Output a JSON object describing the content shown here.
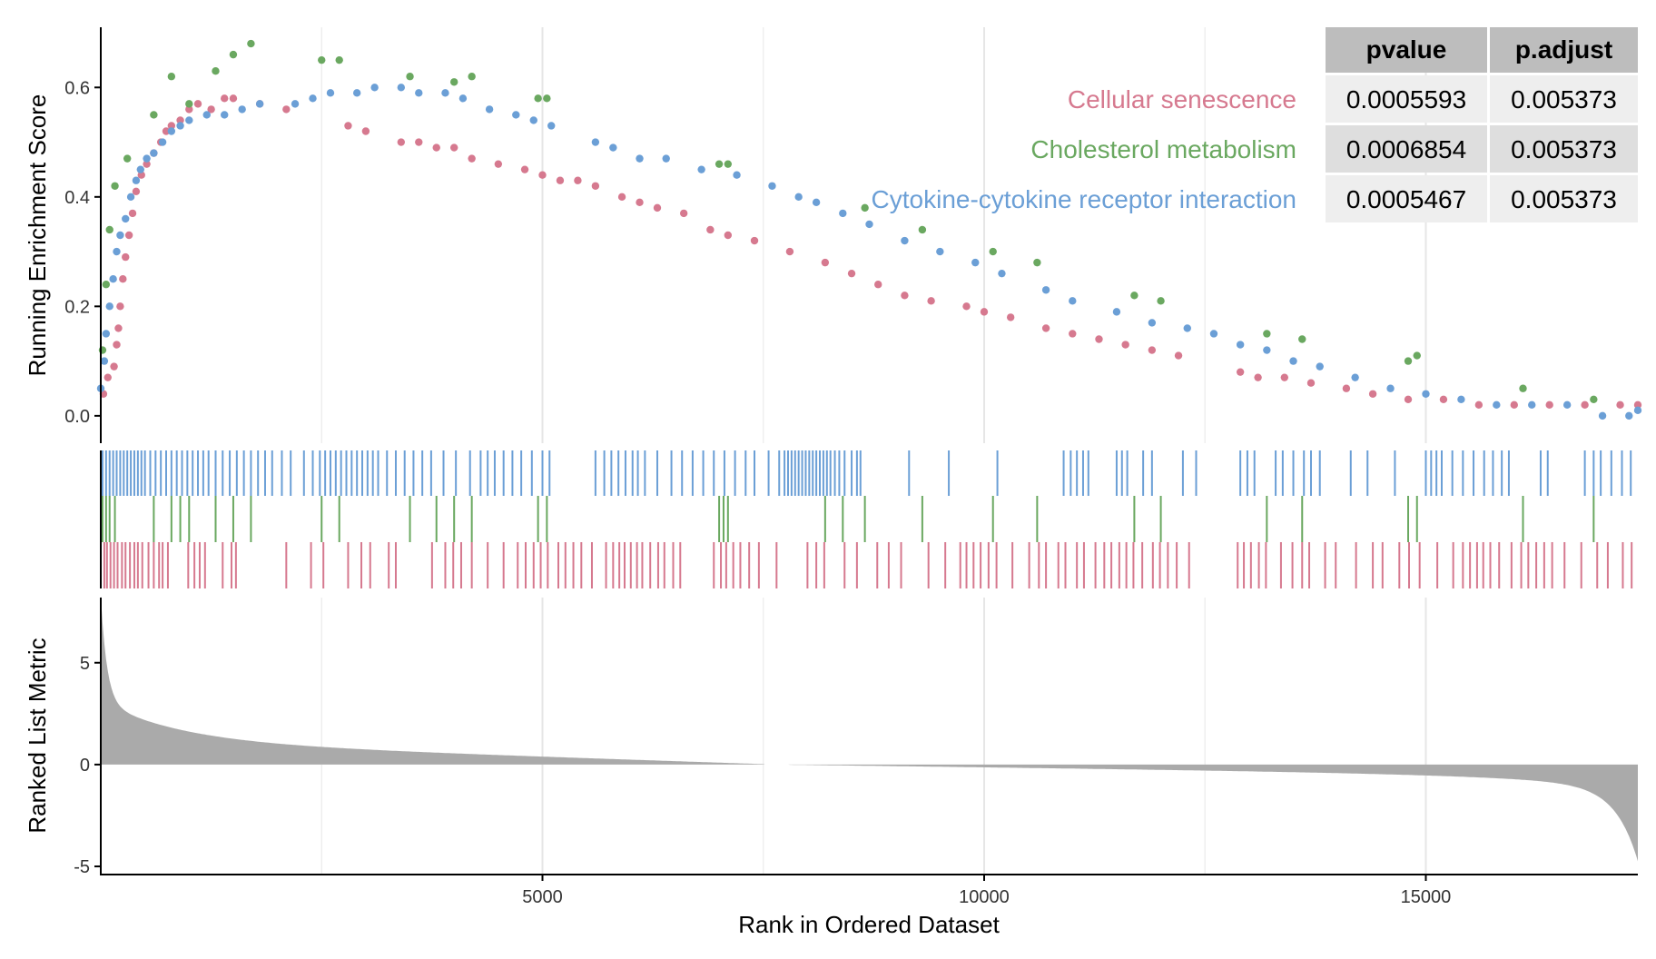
{
  "chart_data": {
    "type": "scatter",
    "xlabel": "Rank in Ordered Dataset",
    "x_ticks": [
      5000,
      10000,
      15000
    ],
    "xlim": [
      0,
      17400
    ],
    "panels": {
      "enrichment": {
        "ylabel": "Running Enrichment Score",
        "ylim": [
          -0.05,
          0.71
        ],
        "y_ticks": [
          "0.0",
          "0.2",
          "0.4",
          "0.6"
        ]
      },
      "metric": {
        "ylabel": "Ranked List Metric",
        "ylim": [
          -5.4,
          8.2
        ],
        "y_ticks": [
          "-5",
          "0",
          "5"
        ]
      }
    },
    "series": [
      {
        "name": "Cellular senescence",
        "color": "#d6798f",
        "points": [
          [
            30,
            0.04
          ],
          [
            80,
            0.07
          ],
          [
            150,
            0.09
          ],
          [
            180,
            0.13
          ],
          [
            200,
            0.16
          ],
          [
            220,
            0.2
          ],
          [
            250,
            0.25
          ],
          [
            280,
            0.29
          ],
          [
            320,
            0.33
          ],
          [
            360,
            0.37
          ],
          [
            400,
            0.41
          ],
          [
            460,
            0.44
          ],
          [
            520,
            0.46
          ],
          [
            600,
            0.48
          ],
          [
            680,
            0.5
          ],
          [
            740,
            0.52
          ],
          [
            800,
            0.53
          ],
          [
            900,
            0.54
          ],
          [
            1000,
            0.56
          ],
          [
            1100,
            0.57
          ],
          [
            1250,
            0.56
          ],
          [
            1400,
            0.58
          ],
          [
            1500,
            0.58
          ],
          [
            1800,
            0.57
          ],
          [
            2100,
            0.56
          ],
          [
            2800,
            0.53
          ],
          [
            3000,
            0.52
          ],
          [
            3400,
            0.5
          ],
          [
            3600,
            0.5
          ],
          [
            3800,
            0.49
          ],
          [
            4000,
            0.49
          ],
          [
            4200,
            0.47
          ],
          [
            4500,
            0.46
          ],
          [
            4800,
            0.45
          ],
          [
            5000,
            0.44
          ],
          [
            5200,
            0.43
          ],
          [
            5400,
            0.43
          ],
          [
            5600,
            0.42
          ],
          [
            5900,
            0.4
          ],
          [
            6100,
            0.39
          ],
          [
            6300,
            0.38
          ],
          [
            6600,
            0.37
          ],
          [
            6900,
            0.34
          ],
          [
            7100,
            0.33
          ],
          [
            7400,
            0.32
          ],
          [
            7800,
            0.3
          ],
          [
            8200,
            0.28
          ],
          [
            8500,
            0.26
          ],
          [
            8800,
            0.24
          ],
          [
            9100,
            0.22
          ],
          [
            9400,
            0.21
          ],
          [
            9800,
            0.2
          ],
          [
            10000,
            0.19
          ],
          [
            10300,
            0.18
          ],
          [
            10700,
            0.16
          ],
          [
            11000,
            0.15
          ],
          [
            11300,
            0.14
          ],
          [
            11600,
            0.13
          ],
          [
            11900,
            0.12
          ],
          [
            12200,
            0.11
          ],
          [
            12900,
            0.08
          ],
          [
            13100,
            0.07
          ],
          [
            13400,
            0.07
          ],
          [
            13700,
            0.06
          ],
          [
            14100,
            0.05
          ],
          [
            14400,
            0.04
          ],
          [
            14800,
            0.03
          ],
          [
            15200,
            0.03
          ],
          [
            15600,
            0.02
          ],
          [
            16000,
            0.02
          ],
          [
            16400,
            0.02
          ],
          [
            16800,
            0.02
          ],
          [
            17200,
            0.02
          ],
          [
            17400,
            0.02
          ]
        ]
      },
      {
        "name": "Cholesterol metabolism",
        "color": "#6aa860",
        "points": [
          [
            20,
            0.12
          ],
          [
            60,
            0.24
          ],
          [
            100,
            0.34
          ],
          [
            160,
            0.42
          ],
          [
            300,
            0.47
          ],
          [
            600,
            0.55
          ],
          [
            800,
            0.62
          ],
          [
            1000,
            0.57
          ],
          [
            1300,
            0.63
          ],
          [
            1500,
            0.66
          ],
          [
            1700,
            0.68
          ],
          [
            2500,
            0.65
          ],
          [
            2700,
            0.65
          ],
          [
            3500,
            0.62
          ],
          [
            4000,
            0.61
          ],
          [
            4200,
            0.62
          ],
          [
            4950,
            0.58
          ],
          [
            5050,
            0.58
          ],
          [
            7000,
            0.46
          ],
          [
            7100,
            0.46
          ],
          [
            8650,
            0.38
          ],
          [
            9300,
            0.34
          ],
          [
            10100,
            0.3
          ],
          [
            10600,
            0.28
          ],
          [
            11700,
            0.22
          ],
          [
            12000,
            0.21
          ],
          [
            13200,
            0.15
          ],
          [
            13600,
            0.14
          ],
          [
            14800,
            0.1
          ],
          [
            14900,
            0.11
          ],
          [
            16100,
            0.05
          ],
          [
            16900,
            0.03
          ]
        ]
      },
      {
        "name": "Cytokine-cytokine receptor interaction",
        "color": "#6b9fd6",
        "points": [
          [
            0,
            0.05
          ],
          [
            40,
            0.1
          ],
          [
            60,
            0.15
          ],
          [
            100,
            0.2
          ],
          [
            140,
            0.25
          ],
          [
            180,
            0.3
          ],
          [
            220,
            0.33
          ],
          [
            280,
            0.36
          ],
          [
            340,
            0.4
          ],
          [
            400,
            0.43
          ],
          [
            450,
            0.45
          ],
          [
            520,
            0.47
          ],
          [
            600,
            0.48
          ],
          [
            700,
            0.5
          ],
          [
            800,
            0.52
          ],
          [
            900,
            0.53
          ],
          [
            1000,
            0.54
          ],
          [
            1200,
            0.55
          ],
          [
            1400,
            0.55
          ],
          [
            1600,
            0.56
          ],
          [
            1800,
            0.57
          ],
          [
            2200,
            0.57
          ],
          [
            2400,
            0.58
          ],
          [
            2600,
            0.59
          ],
          [
            2900,
            0.59
          ],
          [
            3100,
            0.6
          ],
          [
            3400,
            0.6
          ],
          [
            3600,
            0.59
          ],
          [
            3900,
            0.59
          ],
          [
            4100,
            0.58
          ],
          [
            4400,
            0.56
          ],
          [
            4700,
            0.55
          ],
          [
            4900,
            0.54
          ],
          [
            5100,
            0.53
          ],
          [
            5600,
            0.5
          ],
          [
            5800,
            0.49
          ],
          [
            6100,
            0.47
          ],
          [
            6400,
            0.47
          ],
          [
            6800,
            0.45
          ],
          [
            7200,
            0.44
          ],
          [
            7600,
            0.42
          ],
          [
            7900,
            0.4
          ],
          [
            8100,
            0.39
          ],
          [
            8400,
            0.37
          ],
          [
            8700,
            0.35
          ],
          [
            9100,
            0.32
          ],
          [
            9500,
            0.3
          ],
          [
            9900,
            0.28
          ],
          [
            10200,
            0.26
          ],
          [
            10700,
            0.23
          ],
          [
            11000,
            0.21
          ],
          [
            11500,
            0.19
          ],
          [
            11900,
            0.17
          ],
          [
            12300,
            0.16
          ],
          [
            12600,
            0.15
          ],
          [
            12900,
            0.13
          ],
          [
            13200,
            0.12
          ],
          [
            13500,
            0.1
          ],
          [
            13800,
            0.09
          ],
          [
            14200,
            0.07
          ],
          [
            14600,
            0.05
          ],
          [
            15000,
            0.04
          ],
          [
            15400,
            0.03
          ],
          [
            15800,
            0.02
          ],
          [
            16200,
            0.02
          ],
          [
            16600,
            0.02
          ],
          [
            17000,
            0.0
          ],
          [
            17300,
            0.0
          ],
          [
            17400,
            0.01
          ]
        ]
      }
    ],
    "hit_ranks": {
      "Cellular senescence": [
        40,
        70,
        110,
        150,
        190,
        240,
        280,
        330,
        380,
        420,
        470,
        540,
        600,
        660,
        700,
        760,
        990,
        1060,
        1120,
        1180,
        1380,
        1480,
        1530,
        2100,
        2380,
        2520,
        2800,
        2950,
        3050,
        3260,
        3340,
        3750,
        3900,
        3990,
        4080,
        4200,
        4380,
        4560,
        4720,
        4810,
        4900,
        4980,
        5060,
        5180,
        5260,
        5350,
        5440,
        5560,
        5720,
        5800,
        5870,
        5930,
        6000,
        6070,
        6130,
        6220,
        6310,
        6380,
        6480,
        6560,
        6940,
        7020,
        7080,
        7160,
        7240,
        7340,
        7450,
        7650,
        8000,
        8100,
        8190,
        8420,
        8560,
        8790,
        8920,
        9060,
        9370,
        9560,
        9730,
        9800,
        9880,
        9960,
        10050,
        10140,
        10320,
        10510,
        10620,
        10700,
        10840,
        10920,
        11050,
        11130,
        11260,
        11360,
        11440,
        11530,
        11610,
        11690,
        11790,
        11910,
        11990,
        12080,
        12180,
        12320,
        12870,
        12940,
        13020,
        13110,
        13190,
        13360,
        13490,
        13600,
        13680,
        13860,
        13980,
        14210,
        14400,
        14510,
        14700,
        14810,
        14930,
        15130,
        15310,
        15420,
        15500,
        15580,
        15650,
        15730,
        15830,
        15970,
        16080,
        16160,
        16250,
        16340,
        16430,
        16570,
        16760,
        16940,
        17060,
        17230,
        17330
      ],
      "Cholesterol metabolism": [
        20,
        60,
        100,
        160,
        600,
        800,
        900,
        1000,
        1300,
        1500,
        1700,
        2500,
        2700,
        3500,
        3800,
        4000,
        4200,
        4950,
        5050,
        7000,
        7050,
        7100,
        8200,
        8400,
        8650,
        9300,
        10100,
        10600,
        11700,
        12000,
        13200,
        13600,
        14800,
        14900,
        16100,
        16900
      ],
      "Cytokine-cytokine receptor interaction": [
        20,
        60,
        100,
        140,
        180,
        220,
        260,
        300,
        340,
        380,
        420,
        460,
        500,
        560,
        620,
        680,
        740,
        800,
        860,
        920,
        980,
        1040,
        1100,
        1160,
        1220,
        1300,
        1380,
        1460,
        1540,
        1620,
        1700,
        1780,
        1860,
        1940,
        2050,
        2150,
        2300,
        2400,
        2480,
        2540,
        2600,
        2660,
        2720,
        2780,
        2840,
        2900,
        2960,
        3020,
        3080,
        3140,
        3240,
        3340,
        3440,
        3540,
        3640,
        3740,
        3880,
        4020,
        4180,
        4300,
        4380,
        4460,
        4560,
        4660,
        4760,
        4880,
        5000,
        5080,
        5600,
        5700,
        5780,
        5860,
        5940,
        6020,
        6080,
        6160,
        6300,
        6460,
        6580,
        6700,
        6820,
        6940,
        7060,
        7180,
        7300,
        7400,
        7560,
        7680,
        7740,
        7780,
        7820,
        7860,
        7900,
        7940,
        7980,
        8020,
        8060,
        8100,
        8140,
        8180,
        8220,
        8260,
        8310,
        8360,
        8420,
        8500,
        8560,
        8600,
        9150,
        9600,
        10150,
        10900,
        10980,
        11050,
        11120,
        11180,
        11500,
        11560,
        11620,
        11800,
        11900,
        12250,
        12400,
        12900,
        12980,
        13060,
        13300,
        13380,
        13500,
        13620,
        13700,
        13800,
        14150,
        14340,
        14650,
        15000,
        15060,
        15120,
        15180,
        15300,
        15420,
        15540,
        15660,
        15760,
        15860,
        15940,
        16300,
        16380,
        16800,
        16900,
        16980,
        17100,
        17220,
        17320
      ]
    },
    "table": {
      "columns": [
        "pvalue",
        "p.adjust"
      ],
      "rows": [
        {
          "label": "Cellular senescence",
          "pvalue": "0.0005593",
          "p_adjust": "0.005373"
        },
        {
          "label": "Cholesterol metabolism",
          "pvalue": "0.0006854",
          "p_adjust": "0.005373"
        },
        {
          "label": "Cytokine-cytokine receptor interaction",
          "pvalue": "0.0005467",
          "p_adjust": "0.005373"
        }
      ]
    }
  }
}
